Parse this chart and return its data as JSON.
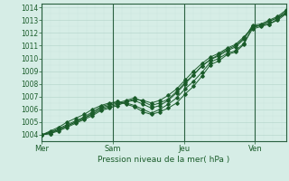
{
  "bg_color": "#d6ede6",
  "grid_color_major": "#b8d8ce",
  "grid_color_minor": "#cce5de",
  "line_color": "#1a5c2a",
  "axis_color": "#2a6040",
  "text_color": "#1a5c2a",
  "xlabel": "Pression niveau de la mer( hPa )",
  "ylim": [
    1003.5,
    1014.3
  ],
  "yticks": [
    1004,
    1005,
    1006,
    1007,
    1008,
    1009,
    1010,
    1011,
    1012,
    1013,
    1014
  ],
  "day_labels": [
    "Mer",
    "Sam",
    "Jeu",
    "Ven"
  ],
  "day_positions": [
    0,
    48,
    96,
    144
  ],
  "total_hours": 165,
  "series": [
    [
      1004.0,
      1004.3,
      1004.6,
      1005.0,
      1005.3,
      1005.6,
      1006.0,
      1006.3,
      1006.5,
      1006.6,
      1006.4,
      1006.2,
      1005.8,
      1005.6,
      1005.8,
      1006.1,
      1006.5,
      1007.2,
      1007.8,
      1008.6,
      1009.5,
      1009.8,
      1010.3,
      1010.5,
      1011.1,
      1012.5,
      1012.6,
      1012.7,
      1013.0,
      1013.5
    ],
    [
      1004.0,
      1004.2,
      1004.5,
      1004.8,
      1005.1,
      1005.4,
      1005.8,
      1006.2,
      1006.4,
      1006.6,
      1006.5,
      1006.3,
      1006.0,
      1005.7,
      1006.0,
      1006.4,
      1006.9,
      1007.6,
      1008.2,
      1008.9,
      1009.7,
      1010.0,
      1010.4,
      1010.6,
      1011.2,
      1012.3,
      1012.5,
      1012.7,
      1013.1,
      1013.6
    ],
    [
      1004.0,
      1004.1,
      1004.4,
      1004.7,
      1005.0,
      1005.3,
      1005.6,
      1006.0,
      1006.2,
      1006.4,
      1006.6,
      1006.7,
      1006.4,
      1006.1,
      1006.3,
      1006.7,
      1007.3,
      1008.0,
      1008.7,
      1009.4,
      1009.9,
      1010.2,
      1010.6,
      1010.9,
      1011.5,
      1012.6,
      1012.7,
      1013.0,
      1013.3,
      1013.8
    ],
    [
      1004.0,
      1004.2,
      1004.4,
      1004.7,
      1005.0,
      1005.3,
      1005.7,
      1006.1,
      1006.3,
      1006.5,
      1006.7,
      1006.9,
      1006.6,
      1006.3,
      1006.5,
      1006.8,
      1007.4,
      1008.1,
      1008.7,
      1009.4,
      1009.9,
      1010.3,
      1010.7,
      1011.0,
      1011.6,
      1012.5,
      1012.6,
      1012.9,
      1013.2,
      1013.7
    ],
    [
      1004.0,
      1004.1,
      1004.3,
      1004.6,
      1004.9,
      1005.2,
      1005.5,
      1005.9,
      1006.1,
      1006.3,
      1006.6,
      1006.8,
      1006.7,
      1006.5,
      1006.7,
      1007.1,
      1007.6,
      1008.3,
      1009.0,
      1009.6,
      1010.1,
      1010.4,
      1010.8,
      1011.1,
      1011.7,
      1012.4,
      1012.6,
      1012.9,
      1013.2,
      1013.5
    ]
  ]
}
